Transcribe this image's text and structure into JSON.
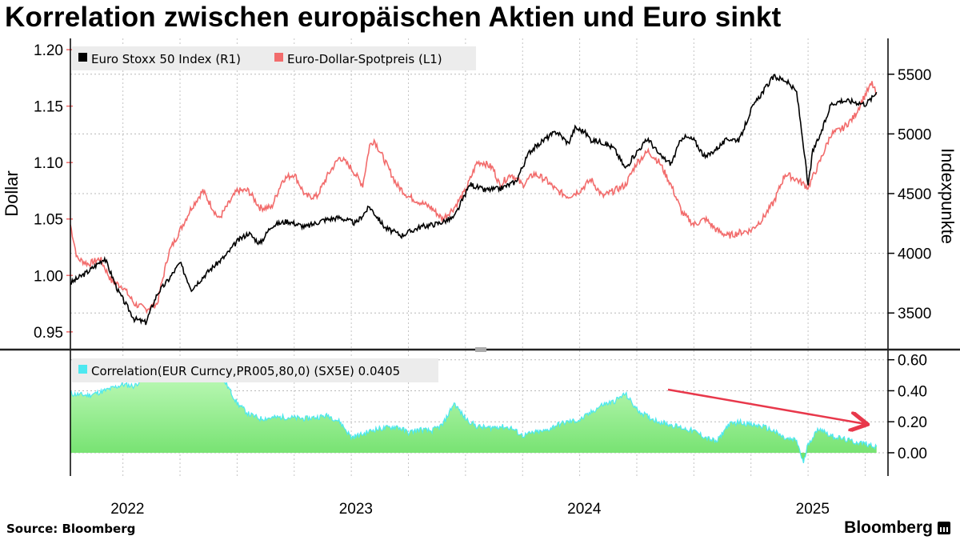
{
  "title": "Korrelation zwischen europäischen Aktien und Euro sinkt",
  "source": "Source: Bloomberg",
  "brand": "Bloomberg",
  "colors": {
    "euro_stoxx": "#000000",
    "eurusd": "#f26c6c",
    "corr_line": "#4de8f0",
    "corr_fill_top": "#b8f8b0",
    "corr_fill_bottom": "#6fe06a",
    "trend_arrow": "#e8384b",
    "grid": "#b8b8b8"
  },
  "chart_data": [
    {
      "type": "line",
      "title": "Korrelation zwischen europäischen Aktien und Euro sinkt",
      "ylabel_left": "Dollar",
      "ylabel_right": "Indexpunkte",
      "left_ticks": [
        "1.20",
        "1.15",
        "1.10",
        "1.05",
        "1.00",
        "0.95"
      ],
      "right_ticks": [
        "5500",
        "5000",
        "4500",
        "4000",
        "3500"
      ],
      "ylim_left": [
        0.935,
        1.21
      ],
      "ylim_right": [
        3200,
        5800
      ],
      "xlim": [
        2021.77,
        2025.35
      ],
      "series": [
        {
          "name": "Euro Stoxx 50 Index (R1)",
          "axis": "right",
          "points": [
            [
              2021.77,
              3750
            ],
            [
              2021.85,
              3850
            ],
            [
              2021.92,
              3960
            ],
            [
              2021.98,
              3680
            ],
            [
              2022.05,
              3450
            ],
            [
              2022.1,
              3420
            ],
            [
              2022.15,
              3660
            ],
            [
              2022.2,
              3780
            ],
            [
              2022.25,
              3920
            ],
            [
              2022.3,
              3700
            ],
            [
              2022.38,
              3860
            ],
            [
              2022.45,
              3980
            ],
            [
              2022.5,
              4100
            ],
            [
              2022.55,
              4170
            ],
            [
              2022.6,
              4080
            ],
            [
              2022.65,
              4230
            ],
            [
              2022.72,
              4270
            ],
            [
              2022.8,
              4220
            ],
            [
              2022.88,
              4280
            ],
            [
              2022.95,
              4300
            ],
            [
              2023.02,
              4250
            ],
            [
              2023.08,
              4390
            ],
            [
              2023.15,
              4210
            ],
            [
              2023.22,
              4150
            ],
            [
              2023.3,
              4220
            ],
            [
              2023.38,
              4250
            ],
            [
              2023.45,
              4300
            ],
            [
              2023.52,
              4580
            ],
            [
              2023.58,
              4530
            ],
            [
              2023.65,
              4540
            ],
            [
              2023.72,
              4600
            ],
            [
              2023.78,
              4850
            ],
            [
              2023.85,
              4960
            ],
            [
              2023.9,
              5020
            ],
            [
              2023.95,
              4920
            ],
            [
              2023.98,
              5050
            ],
            [
              2024.02,
              5020
            ],
            [
              2024.05,
              4950
            ],
            [
              2024.1,
              4930
            ],
            [
              2024.15,
              4880
            ],
            [
              2024.2,
              4710
            ],
            [
              2024.25,
              4850
            ],
            [
              2024.3,
              4960
            ],
            [
              2024.35,
              4820
            ],
            [
              2024.4,
              4750
            ],
            [
              2024.45,
              4980
            ],
            [
              2024.5,
              4950
            ],
            [
              2024.55,
              4800
            ],
            [
              2024.6,
              4880
            ],
            [
              2024.65,
              4960
            ],
            [
              2024.7,
              4950
            ],
            [
              2024.75,
              5200
            ],
            [
              2024.8,
              5350
            ],
            [
              2024.85,
              5480
            ],
            [
              2024.9,
              5450
            ],
            [
              2024.95,
              5350
            ],
            [
              2024.98,
              4900
            ],
            [
              2025.0,
              4560
            ],
            [
              2025.02,
              4850
            ],
            [
              2025.06,
              5020
            ],
            [
              2025.1,
              5250
            ],
            [
              2025.15,
              5280
            ],
            [
              2025.2,
              5270
            ],
            [
              2025.25,
              5250
            ],
            [
              2025.28,
              5300
            ],
            [
              2025.3,
              5350
            ]
          ]
        },
        {
          "name": "Euro-Dollar-Spotpreis (L1)",
          "axis": "left",
          "points": [
            [
              2021.77,
              1.045
            ],
            [
              2021.8,
              1.015
            ],
            [
              2021.85,
              1.01
            ],
            [
              2021.9,
              1.015
            ],
            [
              2021.95,
              0.995
            ],
            [
              2022.0,
              0.99
            ],
            [
              2022.05,
              0.975
            ],
            [
              2022.1,
              0.97
            ],
            [
              2022.15,
              0.975
            ],
            [
              2022.2,
              1.02
            ],
            [
              2022.25,
              1.04
            ],
            [
              2022.3,
              1.06
            ],
            [
              2022.35,
              1.075
            ],
            [
              2022.42,
              1.05
            ],
            [
              2022.5,
              1.075
            ],
            [
              2022.55,
              1.075
            ],
            [
              2022.6,
              1.06
            ],
            [
              2022.65,
              1.06
            ],
            [
              2022.7,
              1.085
            ],
            [
              2022.75,
              1.09
            ],
            [
              2022.8,
              1.07
            ],
            [
              2022.85,
              1.07
            ],
            [
              2022.9,
              1.09
            ],
            [
              2022.95,
              1.105
            ],
            [
              2023.0,
              1.095
            ],
            [
              2023.05,
              1.08
            ],
            [
              2023.08,
              1.115
            ],
            [
              2023.1,
              1.12
            ],
            [
              2023.15,
              1.1
            ],
            [
              2023.2,
              1.08
            ],
            [
              2023.25,
              1.07
            ],
            [
              2023.3,
              1.065
            ],
            [
              2023.35,
              1.06
            ],
            [
              2023.4,
              1.05
            ],
            [
              2023.45,
              1.06
            ],
            [
              2023.5,
              1.075
            ],
            [
              2023.55,
              1.1
            ],
            [
              2023.58,
              1.1
            ],
            [
              2023.62,
              1.095
            ],
            [
              2023.65,
              1.08
            ],
            [
              2023.7,
              1.09
            ],
            [
              2023.75,
              1.08
            ],
            [
              2023.8,
              1.09
            ],
            [
              2023.85,
              1.085
            ],
            [
              2023.9,
              1.075
            ],
            [
              2023.95,
              1.07
            ],
            [
              2024.0,
              1.075
            ],
            [
              2024.05,
              1.085
            ],
            [
              2024.1,
              1.07
            ],
            [
              2024.15,
              1.075
            ],
            [
              2024.2,
              1.08
            ],
            [
              2024.25,
              1.1
            ],
            [
              2024.3,
              1.11
            ],
            [
              2024.35,
              1.1
            ],
            [
              2024.4,
              1.08
            ],
            [
              2024.45,
              1.055
            ],
            [
              2024.5,
              1.045
            ],
            [
              2024.55,
              1.05
            ],
            [
              2024.6,
              1.04
            ],
            [
              2024.65,
              1.035
            ],
            [
              2024.7,
              1.038
            ],
            [
              2024.75,
              1.04
            ],
            [
              2024.8,
              1.05
            ],
            [
              2024.85,
              1.065
            ],
            [
              2024.9,
              1.09
            ],
            [
              2024.95,
              1.085
            ],
            [
              2025.0,
              1.078
            ],
            [
              2025.05,
              1.1
            ],
            [
              2025.1,
              1.125
            ],
            [
              2025.15,
              1.13
            ],
            [
              2025.2,
              1.14
            ],
            [
              2025.25,
              1.16
            ],
            [
              2025.28,
              1.17
            ],
            [
              2025.3,
              1.16
            ]
          ]
        }
      ]
    },
    {
      "type": "area",
      "legend": "Correlation(EUR Curncy,PR005,80,0) (SX5E) 0.0405",
      "right_ticks": [
        "0.60",
        "0.40",
        "0.20",
        "0.00"
      ],
      "ylim": [
        -0.15,
        0.65
      ],
      "x_ticks": [
        "2022",
        "2023",
        "2024",
        "2025"
      ],
      "series": [
        {
          "name": "Correlation(EUR Curncy,PR005,80,0) (SX5E)",
          "last_value": 0.0405,
          "points": [
            [
              2021.77,
              0.38
            ],
            [
              2021.85,
              0.37
            ],
            [
              2021.92,
              0.4
            ],
            [
              2022.0,
              0.44
            ],
            [
              2022.05,
              0.43
            ],
            [
              2022.1,
              0.5
            ],
            [
              2022.2,
              0.55
            ],
            [
              2022.3,
              0.55
            ],
            [
              2022.4,
              0.52
            ],
            [
              2022.45,
              0.45
            ],
            [
              2022.5,
              0.32
            ],
            [
              2022.55,
              0.25
            ],
            [
              2022.6,
              0.22
            ],
            [
              2022.7,
              0.23
            ],
            [
              2022.8,
              0.22
            ],
            [
              2022.9,
              0.24
            ],
            [
              2022.95,
              0.2
            ],
            [
              2023.0,
              0.1
            ],
            [
              2023.05,
              0.12
            ],
            [
              2023.1,
              0.15
            ],
            [
              2023.15,
              0.16
            ],
            [
              2023.2,
              0.17
            ],
            [
              2023.25,
              0.13
            ],
            [
              2023.3,
              0.15
            ],
            [
              2023.35,
              0.14
            ],
            [
              2023.4,
              0.18
            ],
            [
              2023.45,
              0.32
            ],
            [
              2023.5,
              0.22
            ],
            [
              2023.55,
              0.17
            ],
            [
              2023.6,
              0.16
            ],
            [
              2023.65,
              0.17
            ],
            [
              2023.7,
              0.16
            ],
            [
              2023.75,
              0.11
            ],
            [
              2023.8,
              0.13
            ],
            [
              2023.85,
              0.14
            ],
            [
              2023.9,
              0.18
            ],
            [
              2023.95,
              0.2
            ],
            [
              2024.0,
              0.21
            ],
            [
              2024.05,
              0.26
            ],
            [
              2024.1,
              0.31
            ],
            [
              2024.15,
              0.33
            ],
            [
              2024.2,
              0.38
            ],
            [
              2024.25,
              0.28
            ],
            [
              2024.3,
              0.23
            ],
            [
              2024.35,
              0.2
            ],
            [
              2024.4,
              0.18
            ],
            [
              2024.45,
              0.16
            ],
            [
              2024.5,
              0.14
            ],
            [
              2024.55,
              0.1
            ],
            [
              2024.6,
              0.07
            ],
            [
              2024.65,
              0.18
            ],
            [
              2024.7,
              0.2
            ],
            [
              2024.75,
              0.18
            ],
            [
              2024.8,
              0.17
            ],
            [
              2024.85,
              0.14
            ],
            [
              2024.9,
              0.09
            ],
            [
              2024.95,
              0.08
            ],
            [
              2024.98,
              -0.07
            ],
            [
              2025.0,
              0.06
            ],
            [
              2025.05,
              0.16
            ],
            [
              2025.1,
              0.11
            ],
            [
              2025.15,
              0.09
            ],
            [
              2025.2,
              0.07
            ],
            [
              2025.25,
              0.06
            ],
            [
              2025.3,
              0.04
            ]
          ]
        }
      ],
      "annotation": "downward trend arrow"
    }
  ]
}
